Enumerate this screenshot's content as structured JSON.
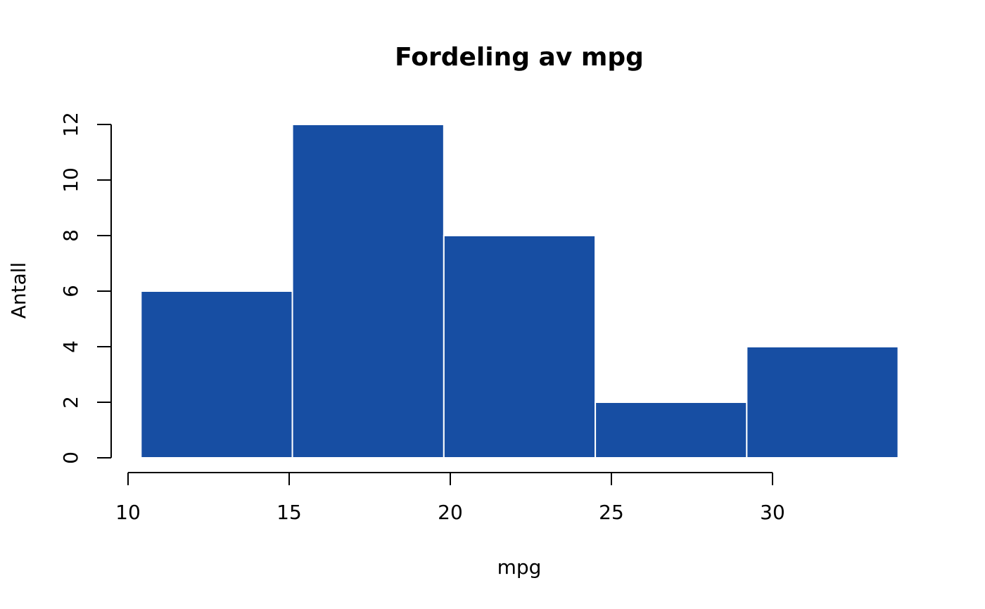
{
  "chart_data": {
    "type": "bar",
    "title": "Fordeling av mpg",
    "xlabel": "mpg",
    "ylabel": "Antall",
    "bins": [
      {
        "start": 10.4,
        "end": 15.1,
        "count": 6
      },
      {
        "start": 15.1,
        "end": 19.8,
        "count": 12
      },
      {
        "start": 19.8,
        "end": 24.5,
        "count": 8
      },
      {
        "start": 24.5,
        "end": 29.2,
        "count": 2
      },
      {
        "start": 29.2,
        "end": 33.9,
        "count": 4
      }
    ],
    "xlim": [
      10,
      30
    ],
    "ylim": [
      0,
      12
    ],
    "x_ticks": [
      10,
      15,
      20,
      25,
      30
    ],
    "y_ticks": [
      0,
      2,
      4,
      6,
      8,
      10,
      12
    ],
    "grid": false,
    "colors": {
      "bar_fill": "#174EA3",
      "bar_border": "#ffffff",
      "axis": "#000000"
    }
  }
}
